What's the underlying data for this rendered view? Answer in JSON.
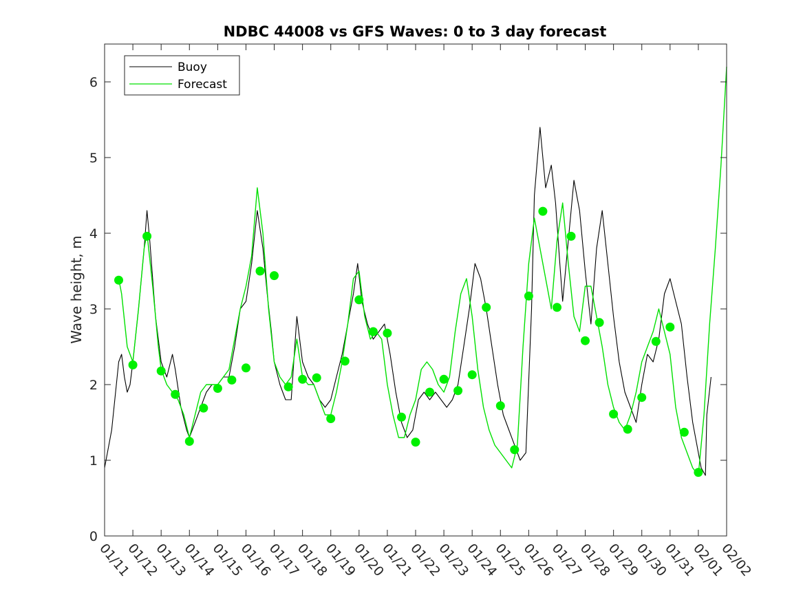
{
  "chart_data": {
    "type": "line",
    "title": "NDBC 44008 vs GFS Waves: 0 to 3 day forecast",
    "xlabel": "",
    "ylabel": "Wave height, m",
    "xlim": [
      0,
      22
    ],
    "ylim": [
      0,
      6.5
    ],
    "yticks": [
      0,
      1,
      2,
      3,
      4,
      5,
      6
    ],
    "xtick_labels": [
      "01/11",
      "01/12",
      "01/13",
      "01/14",
      "01/15",
      "01/16",
      "01/17",
      "01/18",
      "01/19",
      "01/20",
      "01/21",
      "01/22",
      "01/23",
      "01/24",
      "01/25",
      "01/26",
      "01/27",
      "01/28",
      "01/29",
      "01/30",
      "01/31",
      "02/01",
      "02/02"
    ],
    "grid": false,
    "legend": {
      "location": "top-left",
      "entries": [
        {
          "name": "Buoy",
          "color": "#000000"
        },
        {
          "name": "Forecast",
          "color": "#00e000"
        }
      ]
    },
    "series": [
      {
        "name": "Buoy",
        "color": "#000000",
        "x": [
          0,
          0.25,
          0.5,
          0.6,
          0.7,
          0.8,
          0.9,
          1.0,
          1.2,
          1.4,
          1.5,
          1.6,
          1.8,
          2.0,
          2.2,
          2.4,
          2.5,
          2.7,
          2.9,
          3.0,
          3.2,
          3.4,
          3.6,
          3.8,
          4.0,
          4.2,
          4.4,
          4.6,
          4.8,
          5.0,
          5.2,
          5.4,
          5.6,
          5.75,
          5.9,
          6.0,
          6.2,
          6.4,
          6.6,
          6.8,
          7.0,
          7.2,
          7.4,
          7.6,
          7.8,
          8.0,
          8.2,
          8.4,
          8.6,
          8.8,
          8.95,
          9.1,
          9.3,
          9.5,
          9.7,
          9.9,
          10.1,
          10.3,
          10.5,
          10.7,
          10.9,
          11.1,
          11.3,
          11.5,
          11.7,
          11.9,
          12.1,
          12.3,
          12.5,
          12.7,
          12.9,
          13.1,
          13.3,
          13.5,
          13.7,
          13.9,
          14.1,
          14.3,
          14.5,
          14.7,
          14.9,
          15.1,
          15.2,
          15.4,
          15.6,
          15.8,
          15.95,
          16.1,
          16.2,
          16.4,
          16.6,
          16.8,
          17.0,
          17.2,
          17.4,
          17.6,
          17.8,
          18.0,
          18.2,
          18.4,
          18.6,
          18.8,
          19.0,
          19.2,
          19.4,
          19.6,
          19.8,
          20.0,
          20.2,
          20.4,
          20.6,
          20.8,
          21.0,
          21.1,
          21.25,
          21.3,
          21.45
        ],
        "values": [
          0.9,
          1.4,
          2.3,
          2.4,
          2.1,
          1.9,
          2.0,
          2.3,
          3.0,
          3.8,
          4.3,
          3.9,
          2.9,
          2.3,
          2.1,
          2.4,
          2.2,
          1.7,
          1.4,
          1.3,
          1.5,
          1.7,
          1.9,
          2.0,
          2.0,
          2.1,
          2.1,
          2.5,
          3.0,
          3.1,
          3.6,
          4.3,
          3.8,
          3.2,
          2.7,
          2.3,
          2.0,
          1.8,
          1.8,
          2.9,
          2.3,
          2.1,
          2.0,
          1.8,
          1.7,
          1.8,
          2.1,
          2.4,
          2.8,
          3.2,
          3.6,
          3.1,
          2.8,
          2.6,
          2.7,
          2.8,
          2.4,
          1.9,
          1.5,
          1.3,
          1.4,
          1.8,
          1.9,
          1.8,
          1.9,
          1.8,
          1.7,
          1.8,
          2.0,
          2.5,
          3.0,
          3.6,
          3.4,
          3.0,
          2.5,
          2.0,
          1.6,
          1.4,
          1.2,
          1.0,
          1.1,
          3.0,
          4.5,
          5.4,
          4.6,
          4.9,
          4.4,
          3.6,
          3.1,
          3.9,
          4.7,
          4.3,
          3.5,
          2.8,
          3.8,
          4.3,
          3.6,
          2.9,
          2.3,
          1.9,
          1.7,
          1.5,
          2.0,
          2.4,
          2.3,
          2.6,
          3.2,
          3.4,
          3.1,
          2.8,
          2.1,
          1.5,
          1.1,
          0.9,
          0.8,
          1.6,
          2.1
        ]
      },
      {
        "name": "Forecast",
        "color": "#00e000",
        "x": [
          0.5,
          0.6,
          0.8,
          1.0,
          1.2,
          1.4,
          1.5,
          1.7,
          1.9,
          2.0,
          2.2,
          2.4,
          2.6,
          2.8,
          3.0,
          3.2,
          3.4,
          3.6,
          3.8,
          4.0,
          4.2,
          4.4,
          4.6,
          4.8,
          5.0,
          5.2,
          5.4,
          5.6,
          5.8,
          6.0,
          6.2,
          6.4,
          6.6,
          6.8,
          7.0,
          7.2,
          7.4,
          7.6,
          7.8,
          8.0,
          8.2,
          8.4,
          8.6,
          8.8,
          9.0,
          9.2,
          9.4,
          9.6,
          9.8,
          10.0,
          10.2,
          10.4,
          10.6,
          10.8,
          11.0,
          11.2,
          11.4,
          11.6,
          11.8,
          12.0,
          12.2,
          12.4,
          12.6,
          12.8,
          13.0,
          13.2,
          13.4,
          13.6,
          13.8,
          14.0,
          14.2,
          14.4,
          14.6,
          14.8,
          15.0,
          15.2,
          15.4,
          15.6,
          15.8,
          16.0,
          16.2,
          16.4,
          16.6,
          16.8,
          17.0,
          17.2,
          17.4,
          17.6,
          17.8,
          18.0,
          18.2,
          18.4,
          18.6,
          18.8,
          19.0,
          19.2,
          19.4,
          19.6,
          19.8,
          20.0,
          20.2,
          20.4,
          20.6,
          20.8,
          21.0,
          21.2,
          21.4,
          21.6,
          21.8,
          22.0
        ],
        "values": [
          3.4,
          3.2,
          2.5,
          2.3,
          3.0,
          3.8,
          4.0,
          3.3,
          2.5,
          2.2,
          2.0,
          1.9,
          1.8,
          1.6,
          1.3,
          1.6,
          1.9,
          2.0,
          2.0,
          2.0,
          2.1,
          2.2,
          2.6,
          3.0,
          3.3,
          3.7,
          4.6,
          4.0,
          3.0,
          2.3,
          2.1,
          2.0,
          2.1,
          2.6,
          2.1,
          2.0,
          2.0,
          1.8,
          1.6,
          1.6,
          1.9,
          2.3,
          2.8,
          3.4,
          3.5,
          2.9,
          2.6,
          2.7,
          2.6,
          2.0,
          1.6,
          1.3,
          1.3,
          1.6,
          1.8,
          2.2,
          2.3,
          2.2,
          2.0,
          1.9,
          2.1,
          2.7,
          3.2,
          3.4,
          2.9,
          2.2,
          1.7,
          1.4,
          1.2,
          1.1,
          1.0,
          0.9,
          1.2,
          2.5,
          3.6,
          4.2,
          3.8,
          3.4,
          3.0,
          3.9,
          4.4,
          3.6,
          2.9,
          2.7,
          3.3,
          3.3,
          2.9,
          2.5,
          2.0,
          1.7,
          1.5,
          1.4,
          1.6,
          1.9,
          2.3,
          2.5,
          2.7,
          3.0,
          2.7,
          2.4,
          1.7,
          1.3,
          1.1,
          0.9,
          0.8,
          1.6,
          2.8,
          3.8,
          4.9,
          6.2
        ]
      }
    ],
    "markers": {
      "name": "Forecast analysis points",
      "color": "#00f000",
      "x": [
        0.5,
        1.0,
        1.5,
        2.0,
        2.5,
        3.0,
        3.5,
        4.0,
        4.5,
        5.0,
        5.5,
        6.0,
        6.5,
        7.0,
        7.5,
        8.0,
        8.5,
        9.0,
        9.5,
        10.0,
        10.5,
        11.0,
        11.5,
        12.0,
        12.5,
        13.0,
        13.5,
        14.0,
        14.5,
        15.0,
        15.5,
        16.0,
        16.5,
        17.0,
        17.5,
        18.0,
        18.5,
        19.0,
        19.5,
        20.0,
        20.5,
        21.0
      ],
      "values": [
        3.38,
        2.26,
        3.96,
        2.18,
        1.87,
        1.25,
        1.69,
        1.95,
        2.06,
        2.22,
        3.5,
        3.44,
        1.97,
        2.07,
        2.09,
        1.55,
        2.31,
        3.12,
        2.7,
        2.68,
        1.57,
        1.24,
        1.9,
        2.07,
        1.92,
        2.13,
        3.02,
        1.72,
        1.14,
        3.17,
        4.29,
        3.02,
        3.96,
        2.58,
        2.82,
        1.61,
        1.41,
        1.83,
        2.57,
        2.76,
        1.37,
        0.84
      ]
    }
  }
}
